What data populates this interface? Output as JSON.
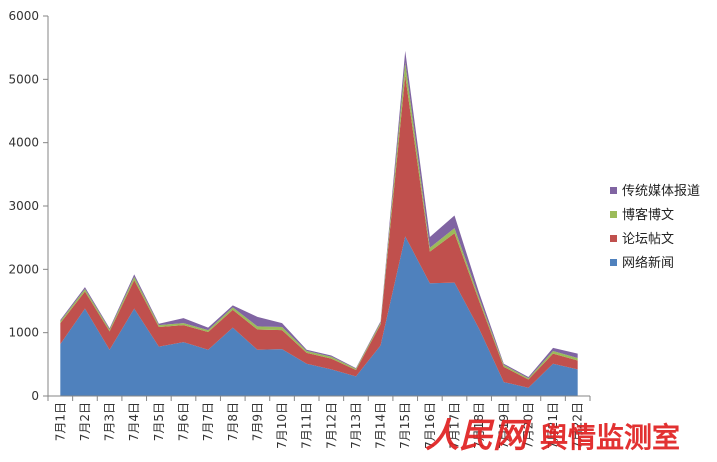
{
  "chart_data": {
    "type": "area",
    "stacked": true,
    "title": "",
    "xlabel": "",
    "ylabel": "",
    "ylim": [
      0,
      6000
    ],
    "yticks": [
      0,
      1000,
      2000,
      3000,
      4000,
      5000,
      6000
    ],
    "grid": false,
    "legend_position": "right",
    "categories": [
      "7月1日",
      "7月2日",
      "7月3日",
      "7月4日",
      "7月5日",
      "7月6日",
      "7月7日",
      "7月8日",
      "7月9日",
      "7月10日",
      "7月11日",
      "7月12日",
      "7月13日",
      "7月14日",
      "7月15日",
      "7月16日",
      "7月17日",
      "7月18日",
      "7月19日",
      "7月20日",
      "7月21日",
      "7月22日"
    ],
    "series": [
      {
        "name": "网络新闻",
        "color": "#4F81BD",
        "values": [
          820,
          1380,
          730,
          1380,
          780,
          850,
          730,
          1080,
          730,
          740,
          510,
          420,
          310,
          800,
          2520,
          1780,
          1790,
          1060,
          220,
          130,
          510,
          420
        ]
      },
      {
        "name": "论坛帖文",
        "color": "#C0504D",
        "values": [
          330,
          270,
          290,
          450,
          310,
          270,
          280,
          280,
          320,
          300,
          170,
          170,
          100,
          330,
          2540,
          500,
          780,
          440,
          240,
          130,
          160,
          140
        ]
      },
      {
        "name": "博客博文",
        "color": "#9BBB59",
        "values": [
          30,
          40,
          30,
          50,
          30,
          30,
          30,
          40,
          50,
          50,
          30,
          30,
          20,
          30,
          210,
          60,
          80,
          50,
          30,
          20,
          40,
          40
        ]
      },
      {
        "name": "传统媒体报道",
        "color": "#8064A2",
        "values": [
          20,
          30,
          20,
          40,
          20,
          80,
          40,
          30,
          150,
          60,
          20,
          20,
          10,
          20,
          180,
          170,
          200,
          80,
          20,
          20,
          50,
          70
        ]
      }
    ]
  },
  "legend_order": [
    "传统媒体报道",
    "博客博文",
    "论坛帖文",
    "网络新闻"
  ],
  "watermark": {
    "brand": "人民网",
    "text": "舆情监测室",
    "color": "#E02020"
  }
}
